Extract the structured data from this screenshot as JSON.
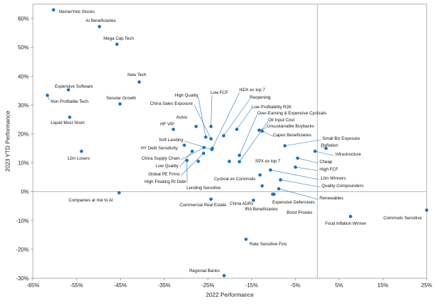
{
  "chart_data": {
    "type": "scatter",
    "title": "",
    "xlabel": "2022 Performance",
    "ylabel": "2023 YTD Performance",
    "xlim": [
      -65,
      25
    ],
    "ylim": [
      -30,
      65
    ],
    "x_ticks": [
      "-65%",
      "-55%",
      "-45%",
      "-35%",
      "-25%",
      "-15%",
      "-5%",
      "5%",
      "15%",
      "25%"
    ],
    "y_ticks": [
      "60%",
      "50%",
      "40%",
      "30%",
      "20%",
      "10%",
      "0%",
      "-10%",
      "-20%",
      "-30%"
    ],
    "x_tick_values": [
      -65,
      -55,
      -45,
      -35,
      -25,
      -15,
      -5,
      5,
      15,
      25
    ],
    "y_tick_values": [
      60,
      50,
      40,
      30,
      20,
      10,
      0,
      -10,
      -20,
      -30
    ],
    "reference_lines": {
      "x": 0,
      "y": 0
    },
    "color": "#1f73b7",
    "points": [
      {
        "label": "Meme/Yolo Stocks",
        "x": -60.3,
        "y": 63.0
      },
      {
        "label": "AI Beneficiaries",
        "x": -49.8,
        "y": 57.2
      },
      {
        "label": "Mega Cap Tech",
        "x": -45.8,
        "y": 51.1
      },
      {
        "label": "New Tech",
        "x": -40.7,
        "y": 38.0
      },
      {
        "label": "Expensive Software",
        "x": -56.9,
        "y": 35.3
      },
      {
        "label": "Non Profitable Tech",
        "x": -61.7,
        "y": 33.4
      },
      {
        "label": "Secular Growth",
        "x": -45.1,
        "y": 30.4
      },
      {
        "label": "Liquid Most Short",
        "x": -56.6,
        "y": 25.8
      },
      {
        "label": "High Quality",
        "x": -25.5,
        "y": 18.9
      },
      {
        "label": "Low FCF",
        "x": -24.3,
        "y": 22.6
      },
      {
        "label": "China Sales Exposure",
        "x": -24.3,
        "y": 18.3
      },
      {
        "label": "Autos",
        "x": -27.7,
        "y": 22.6
      },
      {
        "label": "HF VIP",
        "x": -32.9,
        "y": 21.6
      },
      {
        "label": "NDX ex top 7",
        "x": -24.0,
        "y": 15.0
      },
      {
        "label": "Reopening",
        "x": -21.4,
        "y": 19.4
      },
      {
        "label": "Low Profitability R2K",
        "x": -18.4,
        "y": 21.6
      },
      {
        "label": "Over-Earning & Expensive Cyclicals",
        "x": -17.8,
        "y": 12.6
      },
      {
        "label": "Oil Input Cost",
        "x": -17.8,
        "y": 10.4
      },
      {
        "label": "Unsustainable Buybacks",
        "x": -13.3,
        "y": 21.3
      },
      {
        "label": "Capex Beneficiaries",
        "x": -12.6,
        "y": 21.0
      },
      {
        "label": "Soft Landing",
        "x": -24.1,
        "y": 14.6
      },
      {
        "label": "HY Debt Sensitivity",
        "x": -30.4,
        "y": 16.1
      },
      {
        "label": "China Supply Chain",
        "x": -25.9,
        "y": 15.3
      },
      {
        "label": "Low Quality",
        "x": -28.6,
        "y": 14.0
      },
      {
        "label": "Global PE Firms",
        "x": -26.0,
        "y": 13.3
      },
      {
        "label": "High Floating Rt Debt",
        "x": -29.8,
        "y": 10.8
      },
      {
        "label": "Cyclical ex Commods",
        "x": -20.1,
        "y": 10.5
      },
      {
        "label": "Lending Sensitive",
        "x": -27.2,
        "y": 10.5
      },
      {
        "label": "12m Losers",
        "x": -53.9,
        "y": 14.0
      },
      {
        "label": "Small Biz Exposure",
        "x": -7.4,
        "y": 15.9
      },
      {
        "label": "Reflation",
        "x": 2.0,
        "y": 15.0
      },
      {
        "label": "Infrastructure",
        "x": -0.5,
        "y": 14.0
      },
      {
        "label": "SPX ex top 7",
        "x": -13.1,
        "y": 5.8
      },
      {
        "label": "Cheap",
        "x": -4.5,
        "y": 11.6
      },
      {
        "label": "High FCF",
        "x": -5.0,
        "y": 8.5
      },
      {
        "label": "12m Winners",
        "x": -10.7,
        "y": 7.5
      },
      {
        "label": "Quality Compounders",
        "x": -8.4,
        "y": 4.1
      },
      {
        "label": "Renewables",
        "x": -8.8,
        "y": 1.0
      },
      {
        "label": "Expensive Defensives",
        "x": -9.9,
        "y": -0.9
      },
      {
        "label": "Bond Proxies",
        "x": -10.2,
        "y": -0.9
      },
      {
        "label": "China ADRs",
        "x": -14.6,
        "y": -3.0
      },
      {
        "label": "IRA Beneficiaries",
        "x": -12.6,
        "y": 2.0
      },
      {
        "label": "Companies at risk to AI",
        "x": -45.3,
        "y": -0.4
      },
      {
        "label": "Commercial Real Estate",
        "x": -24.3,
        "y": -2.6
      },
      {
        "label": "Food Inflation Winner",
        "x": 7.6,
        "y": -8.6
      },
      {
        "label": "Commods Sensitive",
        "x": 25.0,
        "y": -6.4
      },
      {
        "label": "Rate Sensitive Fins",
        "x": -16.3,
        "y": -16.5
      },
      {
        "label": "Regional Banks",
        "x": -21.3,
        "y": -29.1
      }
    ]
  }
}
